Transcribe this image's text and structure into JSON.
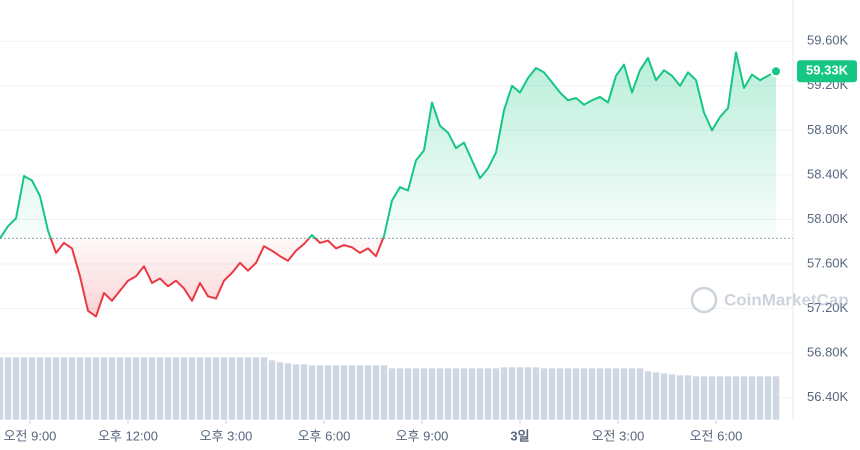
{
  "chart_data": {
    "type": "line",
    "values": [
      57830,
      57940,
      58010,
      58390,
      58350,
      58210,
      57900,
      57700,
      57790,
      57740,
      57490,
      57180,
      57130,
      57340,
      57270,
      57360,
      57450,
      57490,
      57580,
      57430,
      57470,
      57400,
      57450,
      57380,
      57270,
      57430,
      57310,
      57290,
      57450,
      57520,
      57610,
      57540,
      57610,
      57760,
      57720,
      57670,
      57630,
      57720,
      57780,
      57860,
      57790,
      57810,
      57740,
      57770,
      57750,
      57700,
      57740,
      57670,
      57850,
      58170,
      58290,
      58260,
      58530,
      58620,
      59050,
      58840,
      58780,
      58640,
      58690,
      58530,
      58370,
      58460,
      58600,
      58980,
      59200,
      59140,
      59270,
      59360,
      59320,
      59230,
      59140,
      59070,
      59090,
      59030,
      59070,
      59100,
      59050,
      59290,
      59390,
      59140,
      59340,
      59450,
      59250,
      59340,
      59290,
      59200,
      59320,
      59250,
      58960,
      58800,
      58920,
      59000,
      59500,
      59180,
      59300,
      59250,
      59290,
      59330
    ],
    "baseline": 57830,
    "up_color": "#16c784",
    "down_color": "#ea3943",
    "last_price_label": "59.33K",
    "volume": [
      63,
      63,
      63,
      63,
      63,
      63,
      63,
      63,
      63,
      63,
      63,
      63,
      63,
      63,
      63,
      63,
      63,
      63,
      63,
      63,
      63,
      63,
      63,
      63,
      63,
      63,
      63,
      63,
      63,
      63,
      63,
      63,
      63,
      63,
      60,
      58,
      57,
      56,
      56,
      55,
      55,
      55,
      55,
      55,
      55,
      55,
      55,
      55,
      55,
      52,
      52,
      52,
      52,
      52,
      52,
      52,
      52,
      52,
      52,
      52,
      52,
      52,
      52,
      53,
      53,
      53,
      53,
      53,
      52,
      52,
      52,
      52,
      52,
      52,
      52,
      52,
      52,
      52,
      52,
      52,
      52,
      49,
      48,
      47,
      46,
      45,
      45,
      44,
      44,
      44,
      44,
      44,
      44,
      44,
      44,
      44,
      44,
      44
    ],
    "volume_color": "#cfd6e4",
    "xlim": [
      0,
      97
    ],
    "ylim": [
      56200,
      59970
    ],
    "yticks": [
      {
        "value": 56400,
        "label": "56.40K"
      },
      {
        "value": 56800,
        "label": "56.80K"
      },
      {
        "value": 57200,
        "label": "57.20K"
      },
      {
        "value": 57600,
        "label": "57.60K"
      },
      {
        "value": 58000,
        "label": "58.00K"
      },
      {
        "value": 58400,
        "label": "58.40K"
      },
      {
        "value": 58800,
        "label": "58.80K"
      },
      {
        "value": 59200,
        "label": "59.20K"
      },
      {
        "value": 59600,
        "label": "59.60K"
      }
    ],
    "xticks": [
      {
        "value": 3.75,
        "label": "오전 9:00"
      },
      {
        "value": 16,
        "label": "오후 12:00"
      },
      {
        "value": 28.25,
        "label": "오후 3:00"
      },
      {
        "value": 40.5,
        "label": "오후 6:00"
      },
      {
        "value": 52.75,
        "label": "오후 9:00"
      },
      {
        "value": 65,
        "label": "3일",
        "bold": true
      },
      {
        "value": 77.25,
        "label": "오전 3:00"
      },
      {
        "value": 89.5,
        "label": "오전 6:00"
      }
    ],
    "grid": true,
    "watermark": "CoinMarketCap"
  }
}
